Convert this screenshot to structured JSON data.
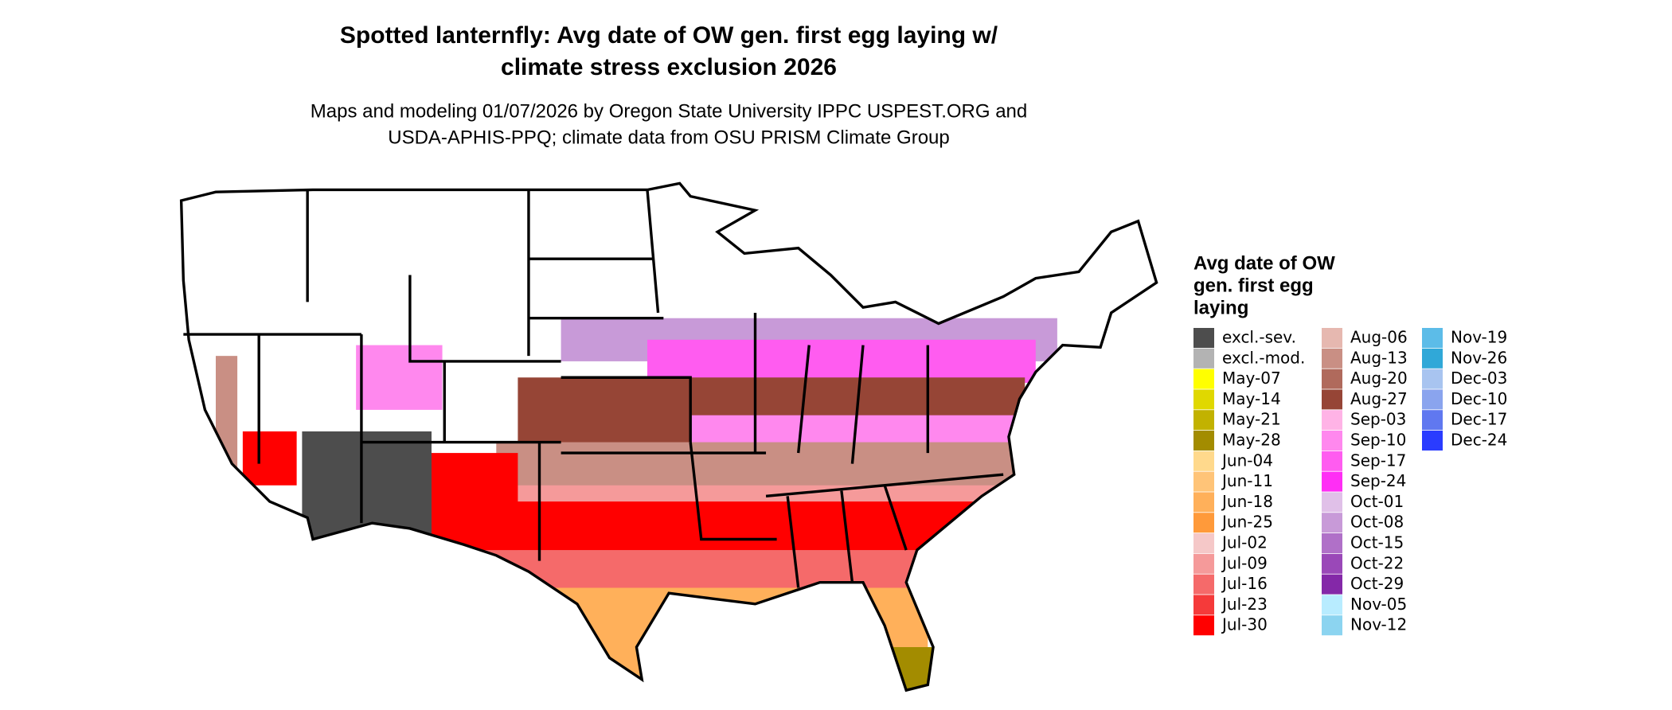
{
  "header": {
    "title": [
      "Spotted lanternfly: Avg date of OW gen. first egg laying w/",
      "climate stress exclusion 2026"
    ],
    "subtitle": [
      "Maps and modeling 01/07/2026 by Oregon State University IPPC USPEST.ORG and",
      "USDA-APHIS-PPQ; climate data from OSU PRISM Climate Group"
    ]
  },
  "legend": {
    "title": [
      "Avg date of OW",
      "gen. first egg",
      "laying"
    ],
    "items": [
      {
        "label": "excl.-sev.",
        "color": "#4d4d4d"
      },
      {
        "label": "excl.-mod.",
        "color": "#b3b3b3"
      },
      {
        "label": "May-07",
        "color": "#ffff00"
      },
      {
        "label": "May-14",
        "color": "#e0d800"
      },
      {
        "label": "May-21",
        "color": "#c2b200"
      },
      {
        "label": "May-28",
        "color": "#a38c00"
      },
      {
        "label": "Jun-04",
        "color": "#ffd98c"
      },
      {
        "label": "Jun-11",
        "color": "#ffc478"
      },
      {
        "label": "Jun-18",
        "color": "#ffb05a"
      },
      {
        "label": "Jun-25",
        "color": "#ff9a3a"
      },
      {
        "label": "Jul-02",
        "color": "#f5c8c8"
      },
      {
        "label": "Jul-09",
        "color": "#f59a9a"
      },
      {
        "label": "Jul-16",
        "color": "#f56a6a"
      },
      {
        "label": "Jul-23",
        "color": "#f53a3a"
      },
      {
        "label": "Jul-30",
        "color": "#ff0000"
      },
      {
        "label": "Aug-06",
        "color": "#e6b8b0"
      },
      {
        "label": "Aug-13",
        "color": "#c98f84"
      },
      {
        "label": "Aug-20",
        "color": "#b06a5c"
      },
      {
        "label": "Aug-27",
        "color": "#964536"
      },
      {
        "label": "Sep-03",
        "color": "#ffb3e6"
      },
      {
        "label": "Sep-10",
        "color": "#ff88ee"
      },
      {
        "label": "Sep-17",
        "color": "#ff5cf0"
      },
      {
        "label": "Sep-24",
        "color": "#ff2ef5"
      },
      {
        "label": "Oct-01",
        "color": "#e0c0e8"
      },
      {
        "label": "Oct-08",
        "color": "#c89ad8"
      },
      {
        "label": "Oct-15",
        "color": "#b070c8"
      },
      {
        "label": "Oct-22",
        "color": "#9a48b8"
      },
      {
        "label": "Oct-29",
        "color": "#8428a8"
      },
      {
        "label": "Nov-05",
        "color": "#b8ecff"
      },
      {
        "label": "Nov-12",
        "color": "#8cd4f0"
      },
      {
        "label": "Nov-19",
        "color": "#5cbce8"
      },
      {
        "label": "Nov-26",
        "color": "#30a8d8"
      },
      {
        "label": "Dec-03",
        "color": "#a8c4f0"
      },
      {
        "label": "Dec-10",
        "color": "#8aa4ee"
      },
      {
        "label": "Dec-17",
        "color": "#6078f0"
      },
      {
        "label": "Dec-24",
        "color": "#2a3cff"
      }
    ]
  }
}
